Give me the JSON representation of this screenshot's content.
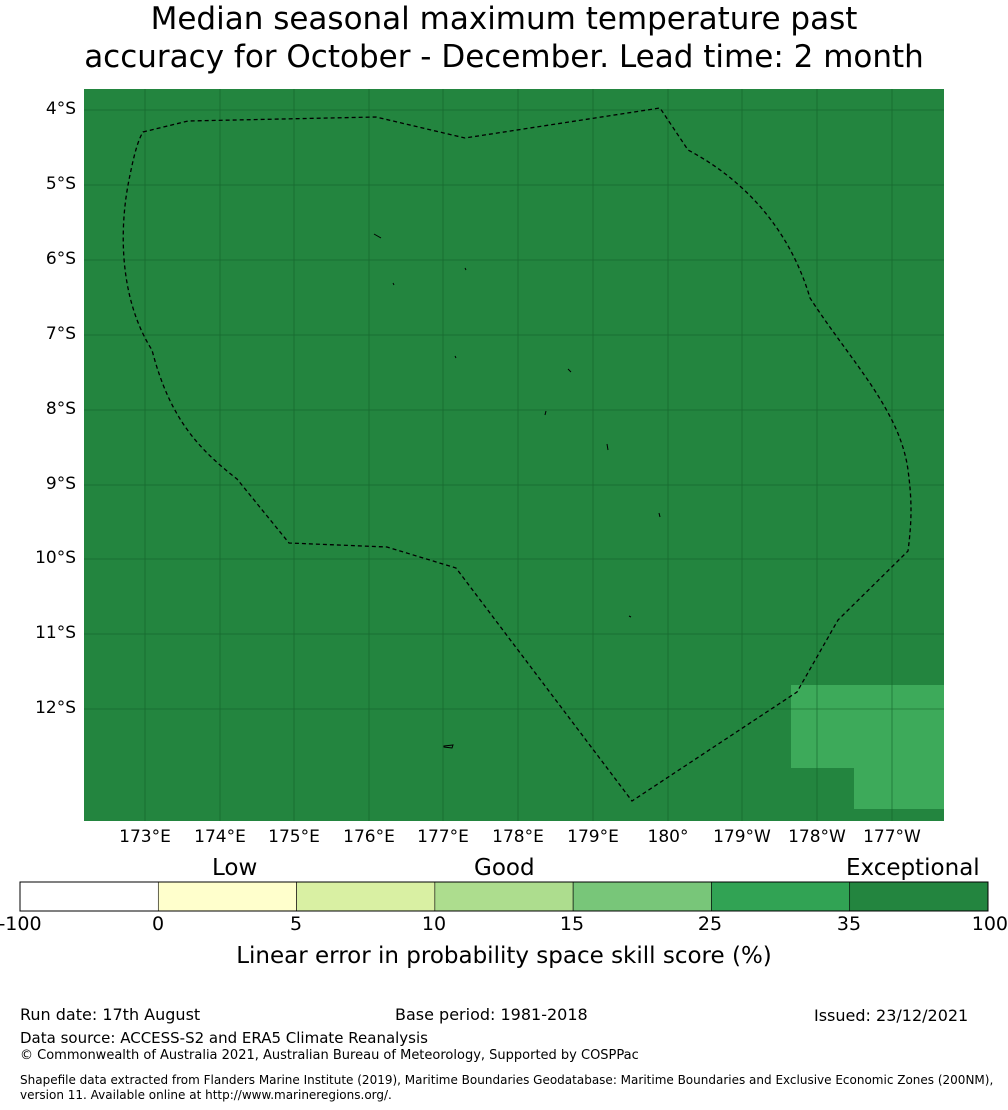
{
  "title_line1": "Median seasonal maximum temperature past",
  "title_line2": "accuracy for October - December. Lead time: 2 month",
  "map": {
    "background_color": "#23853f",
    "cell_color_light": "#3daa5a",
    "lat_labels": [
      "4°S",
      "5°S",
      "6°S",
      "7°S",
      "8°S",
      "9°S",
      "10°S",
      "11°S",
      "12°S"
    ],
    "lon_labels": [
      "173°E",
      "174°E",
      "175°E",
      "176°E",
      "177°E",
      "178°E",
      "179°E",
      "180°",
      "179°W",
      "178°W",
      "177°W"
    ]
  },
  "colorbar": {
    "categories": [
      "Low",
      "Good",
      "Exceptional"
    ],
    "ticks": [
      "-100",
      "0",
      "5",
      "10",
      "15",
      "25",
      "35",
      "100"
    ],
    "colors": [
      "#ffffff",
      "#ffffcc",
      "#d9f0a3",
      "#addd8e",
      "#78c679",
      "#31a354",
      "#23853f"
    ],
    "label": "Linear error in probability space skill score (%)"
  },
  "footer": {
    "run_date": "Run date: 17th August",
    "base_period": "Base period: 1981-2018",
    "issued": "Issued: 23/12/2021",
    "data_source": "Data source: ACCESS-S2 and ERA5 Climate Reanalysis",
    "copyright": "© Commonwealth of Australia 2021, Australian Bureau of Meteorology, Supported by COSPPac",
    "shapefile": "Shapefile data extracted from Flanders Marine Institute (2019), Maritime Boundaries Geodatabase: Maritime Boundaries and Exclusive Economic Zones (200NM), version 11. Available online at http://www.marineregions.org/."
  }
}
